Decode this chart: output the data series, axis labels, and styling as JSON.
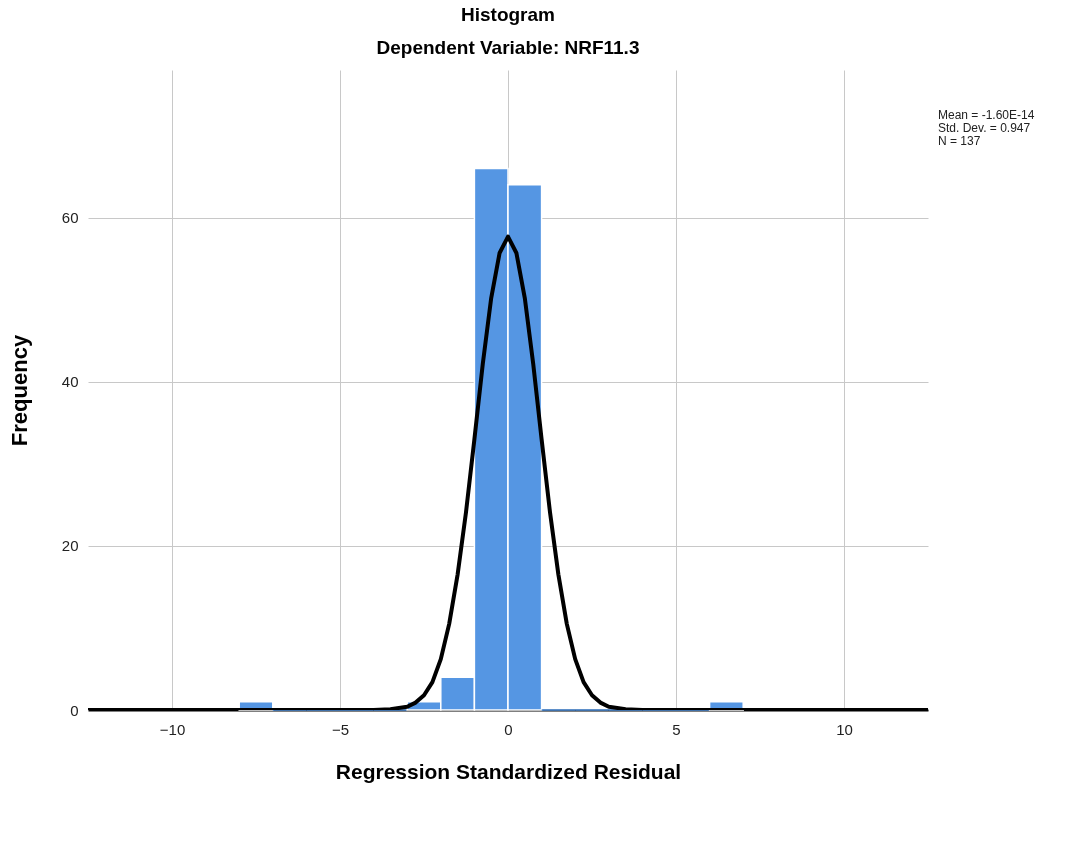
{
  "chart_data": {
    "type": "histogram",
    "title": "Histogram",
    "subtitle": "Dependent Variable: NRF11.3",
    "xlabel": "Regression Standardized Residual",
    "ylabel": "Frequency",
    "bins": [
      -8,
      -7,
      -6,
      -5,
      -4,
      -3,
      -2,
      -1,
      0,
      1,
      2,
      3,
      4,
      5,
      6,
      7
    ],
    "values": [
      1,
      0,
      0,
      0,
      0,
      1,
      4,
      66,
      64,
      0,
      0,
      0,
      0,
      0,
      1
    ],
    "color": "#5596e3",
    "series": [
      {
        "type": "line",
        "color": "#000000",
        "x": [
          -12.5,
          -4,
          -3.5,
          -3,
          -2.75,
          -2.5,
          -2.25,
          -2,
          -1.75,
          -1.5,
          -1.25,
          -1,
          -0.75,
          -0.5,
          -0.25,
          0,
          0.25,
          0.5,
          0.75,
          1,
          1.25,
          1.5,
          1.75,
          2,
          2.25,
          2.5,
          2.75,
          3,
          3.5,
          4,
          12.5
        ],
        "values": [
          0,
          0,
          0.1,
          0.4,
          0.9,
          1.8,
          3.4,
          6.2,
          10.5,
          16.5,
          24.1,
          33,
          42.2,
          50.2,
          55.7,
          57.7,
          55.7,
          50.2,
          42.2,
          33,
          24.1,
          16.5,
          10.5,
          6.2,
          3.4,
          1.8,
          0.9,
          0.4,
          0.1,
          0,
          0
        ]
      }
    ],
    "xlim": [
      -12.5,
      12.5
    ],
    "xticks": [
      -10,
      -5,
      0,
      5,
      10
    ],
    "ylim": [
      0,
      78
    ],
    "yticks": [
      0,
      20,
      40,
      60
    ],
    "grid": true,
    "annotations": [
      "Mean = -1.60E-14",
      "Std. Dev. = 0.947",
      "N = 137"
    ]
  }
}
